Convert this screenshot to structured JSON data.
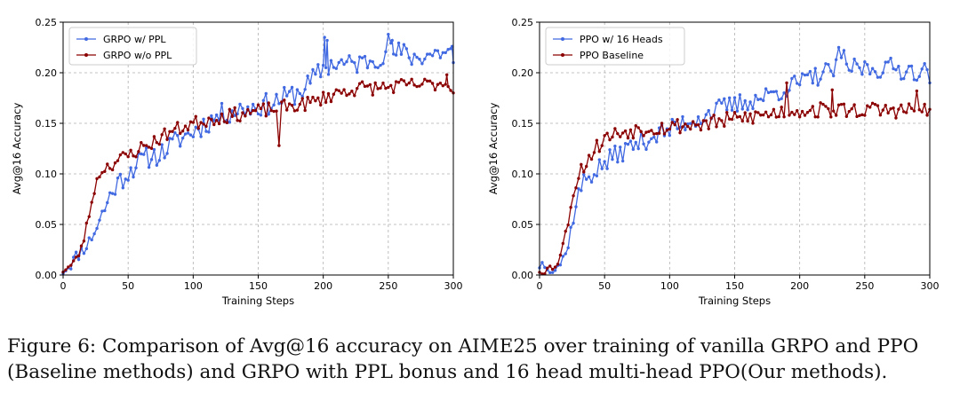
{
  "chart_data": [
    {
      "type": "line",
      "xlabel": "Training Steps",
      "ylabel": "Avg@16 Accuracy",
      "xlim": [
        0,
        300
      ],
      "ylim": [
        0,
        0.25
      ],
      "xticks": [
        "0",
        "50",
        "100",
        "150",
        "200",
        "250",
        "300"
      ],
      "yticks": [
        "0.00",
        "0.05",
        "0.10",
        "0.15",
        "0.20",
        "0.25"
      ],
      "legend_position": "top-left",
      "series": [
        {
          "name": "GRPO w/ PPL",
          "color": "#4169e1",
          "anchors": [
            [
              0,
              0.005
            ],
            [
              5,
              0.01
            ],
            [
              10,
              0.018
            ],
            [
              15,
              0.025
            ],
            [
              20,
              0.033
            ],
            [
              25,
              0.045
            ],
            [
              30,
              0.06
            ],
            [
              35,
              0.075
            ],
            [
              40,
              0.088
            ],
            [
              45,
              0.095
            ],
            [
              50,
              0.102
            ],
            [
              55,
              0.108
            ],
            [
              60,
              0.113
            ],
            [
              65,
              0.116
            ],
            [
              70,
              0.118
            ],
            [
              75,
              0.12
            ],
            [
              80,
              0.125
            ],
            [
              85,
              0.13
            ],
            [
              90,
              0.135
            ],
            [
              95,
              0.138
            ],
            [
              100,
              0.142
            ],
            [
              110,
              0.15
            ],
            [
              120,
              0.158
            ],
            [
              130,
              0.162
            ],
            [
              140,
              0.165
            ],
            [
              150,
              0.167
            ],
            [
              160,
              0.17
            ],
            [
              170,
              0.175
            ],
            [
              180,
              0.18
            ],
            [
              190,
              0.19
            ],
            [
              200,
              0.205
            ],
            [
              210,
              0.21
            ],
            [
              220,
              0.208
            ],
            [
              230,
              0.21
            ],
            [
              240,
              0.215
            ],
            [
              250,
              0.22
            ],
            [
              260,
              0.22
            ],
            [
              270,
              0.215
            ],
            [
              280,
              0.218
            ],
            [
              290,
              0.22
            ],
            [
              300,
              0.22
            ]
          ],
          "noise": 0.011,
          "seed": 11,
          "extremes": [
            [
              201,
              0.235
            ],
            [
              203,
              0.232
            ],
            [
              250,
              0.238
            ],
            [
              253,
              0.232
            ],
            [
              299,
              0.226
            ],
            [
              300,
              0.21
            ]
          ]
        },
        {
          "name": "GRPO w/o PPL",
          "color": "#8b0000",
          "anchors": [
            [
              0,
              0.005
            ],
            [
              5,
              0.008
            ],
            [
              10,
              0.015
            ],
            [
              15,
              0.03
            ],
            [
              20,
              0.06
            ],
            [
              25,
              0.09
            ],
            [
              30,
              0.105
            ],
            [
              35,
              0.108
            ],
            [
              40,
              0.112
            ],
            [
              45,
              0.115
            ],
            [
              50,
              0.118
            ],
            [
              55,
              0.122
            ],
            [
              60,
              0.126
            ],
            [
              65,
              0.128
            ],
            [
              70,
              0.132
            ],
            [
              75,
              0.136
            ],
            [
              80,
              0.14
            ],
            [
              85,
              0.143
            ],
            [
              90,
              0.145
            ],
            [
              95,
              0.148
            ],
            [
              100,
              0.15
            ],
            [
              110,
              0.153
            ],
            [
              120,
              0.156
            ],
            [
              130,
              0.158
            ],
            [
              140,
              0.16
            ],
            [
              150,
              0.162
            ],
            [
              160,
              0.164
            ],
            [
              170,
              0.166
            ],
            [
              180,
              0.168
            ],
            [
              190,
              0.17
            ],
            [
              200,
              0.175
            ],
            [
              210,
              0.18
            ],
            [
              220,
              0.183
            ],
            [
              230,
              0.185
            ],
            [
              240,
              0.185
            ],
            [
              250,
              0.186
            ],
            [
              260,
              0.187
            ],
            [
              270,
              0.188
            ],
            [
              280,
              0.188
            ],
            [
              290,
              0.19
            ],
            [
              300,
              0.188
            ]
          ],
          "noise": 0.007,
          "seed": 23,
          "extremes": [
            [
              166,
              0.128
            ],
            [
              300,
              0.18
            ],
            [
              295,
              0.198
            ]
          ]
        }
      ]
    },
    {
      "type": "line",
      "xlabel": "Training Steps",
      "ylabel": "Avg@16 Accuracy",
      "xlim": [
        0,
        300
      ],
      "ylim": [
        0,
        0.25
      ],
      "xticks": [
        "0",
        "50",
        "100",
        "150",
        "200",
        "250",
        "300"
      ],
      "yticks": [
        "0.00",
        "0.05",
        "0.10",
        "0.15",
        "0.20",
        "0.25"
      ],
      "legend_position": "top-left",
      "series": [
        {
          "name": "PPO w/ 16 Heads",
          "color": "#4169e1",
          "anchors": [
            [
              0,
              0.01
            ],
            [
              5,
              0.012
            ],
            [
              10,
              0.005
            ],
            [
              15,
              0.01
            ],
            [
              20,
              0.02
            ],
            [
              25,
              0.05
            ],
            [
              30,
              0.08
            ],
            [
              35,
              0.095
            ],
            [
              40,
              0.1
            ],
            [
              45,
              0.105
            ],
            [
              50,
              0.11
            ],
            [
              55,
              0.115
            ],
            [
              60,
              0.12
            ],
            [
              65,
              0.123
            ],
            [
              70,
              0.127
            ],
            [
              75,
              0.13
            ],
            [
              80,
              0.133
            ],
            [
              85,
              0.136
            ],
            [
              90,
              0.139
            ],
            [
              95,
              0.141
            ],
            [
              100,
              0.143
            ],
            [
              110,
              0.15
            ],
            [
              120,
              0.155
            ],
            [
              130,
              0.16
            ],
            [
              140,
              0.165
            ],
            [
              150,
              0.168
            ],
            [
              160,
              0.172
            ],
            [
              170,
              0.175
            ],
            [
              180,
              0.18
            ],
            [
              190,
              0.185
            ],
            [
              200,
              0.19
            ],
            [
              210,
              0.195
            ],
            [
              220,
              0.2
            ],
            [
              230,
              0.205
            ],
            [
              240,
              0.205
            ],
            [
              250,
              0.205
            ],
            [
              260,
              0.204
            ],
            [
              270,
              0.205
            ],
            [
              280,
              0.203
            ],
            [
              290,
              0.202
            ],
            [
              300,
              0.2
            ]
          ],
          "noise": 0.01,
          "seed": 37,
          "extremes": [
            [
              230,
              0.225
            ],
            [
              234,
              0.222
            ],
            [
              300,
              0.19
            ]
          ]
        },
        {
          "name": "PPO Baseline",
          "color": "#8b0000",
          "anchors": [
            [
              0,
              0.005
            ],
            [
              5,
              0.005
            ],
            [
              10,
              0.008
            ],
            [
              15,
              0.015
            ],
            [
              20,
              0.04
            ],
            [
              25,
              0.075
            ],
            [
              30,
              0.1
            ],
            [
              35,
              0.11
            ],
            [
              40,
              0.12
            ],
            [
              45,
              0.128
            ],
            [
              50,
              0.135
            ],
            [
              55,
              0.138
            ],
            [
              60,
              0.14
            ],
            [
              65,
              0.142
            ],
            [
              70,
              0.143
            ],
            [
              75,
              0.144
            ],
            [
              80,
              0.145
            ],
            [
              85,
              0.146
            ],
            [
              90,
              0.146
            ],
            [
              95,
              0.146
            ],
            [
              100,
              0.147
            ],
            [
              110,
              0.148
            ],
            [
              120,
              0.149
            ],
            [
              130,
              0.15
            ],
            [
              140,
              0.152
            ],
            [
              150,
              0.154
            ],
            [
              160,
              0.156
            ],
            [
              170,
              0.158
            ],
            [
              180,
              0.16
            ],
            [
              190,
              0.162
            ],
            [
              200,
              0.163
            ],
            [
              210,
              0.163
            ],
            [
              220,
              0.163
            ],
            [
              230,
              0.163
            ],
            [
              240,
              0.163
            ],
            [
              250,
              0.163
            ],
            [
              260,
              0.163
            ],
            [
              270,
              0.163
            ],
            [
              280,
              0.163
            ],
            [
              290,
              0.163
            ],
            [
              300,
              0.163
            ]
          ],
          "noise": 0.008,
          "seed": 53,
          "extremes": [
            [
              190,
              0.19
            ],
            [
              225,
              0.183
            ],
            [
              290,
              0.182
            ],
            [
              298,
              0.158
            ]
          ]
        }
      ]
    }
  ],
  "caption": {
    "line1": "Figure 6: Comparison of Avg@16 accuracy on AIME25 over training of vanilla GRPO and PPO",
    "line2": "(Baseline methods) and GRPO with PPL bonus and 16 head multi-head PPO(Our methods)."
  }
}
